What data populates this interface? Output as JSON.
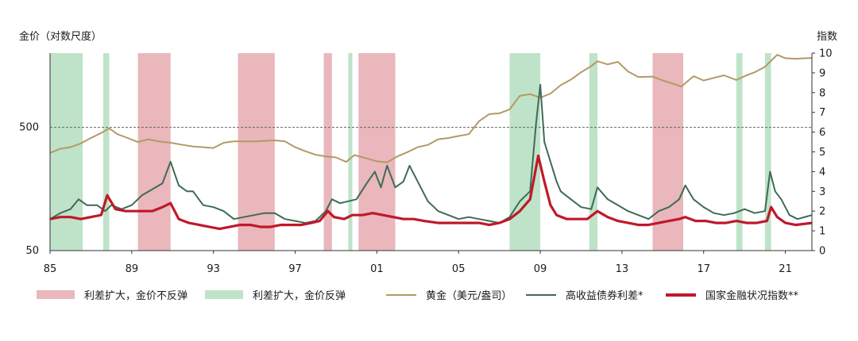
{
  "axes": {
    "left_title": "金价（对数尺度）",
    "right_title": "指数",
    "x_ticks": [
      "85",
      "89",
      "93",
      "97",
      "01",
      "05",
      "09",
      "13",
      "17",
      "21"
    ],
    "left_ticks": [
      "50",
      "500"
    ],
    "right_ticks": [
      "0",
      "1",
      "2",
      "3",
      "4",
      "5",
      "6",
      "7",
      "8",
      "9",
      "10"
    ]
  },
  "legend": {
    "red_band": "利差扩大，金价不反弹",
    "green_band": "利差扩大，金价反弹",
    "gold": "黄金（美元/盎司）",
    "hy": "高收益债券利差*",
    "fci": "国家金融状况指数**"
  },
  "colors": {
    "red_band": "#e9b7bc",
    "green_band": "#bfe3c9",
    "gold": "#b39a66",
    "hy": "#3e6b55",
    "fci": "#c0182a"
  },
  "chart_data": {
    "type": "line",
    "x_range": [
      1985.0,
      2022.3
    ],
    "left_axis": {
      "scale": "log",
      "range": [
        50,
        2000
      ],
      "ticks": [
        50,
        500
      ]
    },
    "right_axis": {
      "range": [
        0,
        10
      ],
      "ticks": [
        0,
        1,
        2,
        3,
        4,
        5,
        6,
        7,
        8,
        9,
        10
      ]
    },
    "reference_line": {
      "axis": "left",
      "value": 500,
      "style": "dashed"
    },
    "bands": [
      {
        "kind": "green",
        "start": 1985.0,
        "end": 1986.6
      },
      {
        "kind": "green",
        "start": 1987.6,
        "end": 1987.9
      },
      {
        "kind": "red",
        "start": 1989.3,
        "end": 1990.9
      },
      {
        "kind": "red",
        "start": 1994.2,
        "end": 1996.0
      },
      {
        "kind": "red",
        "start": 1998.4,
        "end": 1998.8
      },
      {
        "kind": "green",
        "start": 1999.6,
        "end": 1999.8
      },
      {
        "kind": "red",
        "start": 2000.1,
        "end": 2001.9
      },
      {
        "kind": "green",
        "start": 2007.5,
        "end": 2009.0
      },
      {
        "kind": "green",
        "start": 2011.4,
        "end": 2011.8
      },
      {
        "kind": "red",
        "start": 2014.5,
        "end": 2016.0
      },
      {
        "kind": "green",
        "start": 2018.6,
        "end": 2018.9
      },
      {
        "kind": "green",
        "start": 2020.0,
        "end": 2020.3
      }
    ],
    "series": [
      {
        "name": "黄金（美元/盎司）",
        "axis": "left",
        "points": [
          [
            1985.0,
            310
          ],
          [
            1985.5,
            335
          ],
          [
            1986.0,
            345
          ],
          [
            1986.5,
            370
          ],
          [
            1987.0,
            410
          ],
          [
            1987.5,
            450
          ],
          [
            1987.9,
            490
          ],
          [
            1988.3,
            440
          ],
          [
            1988.8,
            410
          ],
          [
            1989.3,
            380
          ],
          [
            1989.8,
            400
          ],
          [
            1990.3,
            385
          ],
          [
            1990.9,
            375
          ],
          [
            1991.5,
            360
          ],
          [
            1992.0,
            350
          ],
          [
            1992.5,
            345
          ],
          [
            1993.0,
            340
          ],
          [
            1993.5,
            375
          ],
          [
            1994.0,
            385
          ],
          [
            1995.0,
            385
          ],
          [
            1996.0,
            392
          ],
          [
            1996.5,
            385
          ],
          [
            1997.0,
            345
          ],
          [
            1997.5,
            320
          ],
          [
            1998.0,
            300
          ],
          [
            1998.5,
            290
          ],
          [
            1999.0,
            285
          ],
          [
            1999.5,
            262
          ],
          [
            1999.9,
            298
          ],
          [
            2000.5,
            280
          ],
          [
            2001.0,
            265
          ],
          [
            2001.5,
            260
          ],
          [
            2002.0,
            290
          ],
          [
            2002.5,
            315
          ],
          [
            2003.0,
            345
          ],
          [
            2003.5,
            360
          ],
          [
            2004.0,
            400
          ],
          [
            2004.5,
            410
          ],
          [
            2005.0,
            425
          ],
          [
            2005.5,
            440
          ],
          [
            2006.0,
            560
          ],
          [
            2006.5,
            640
          ],
          [
            2007.0,
            650
          ],
          [
            2007.5,
            700
          ],
          [
            2008.0,
            900
          ],
          [
            2008.5,
            930
          ],
          [
            2009.0,
            870
          ],
          [
            2009.5,
            940
          ],
          [
            2010.0,
            1100
          ],
          [
            2010.5,
            1220
          ],
          [
            2011.0,
            1400
          ],
          [
            2011.5,
            1570
          ],
          [
            2011.8,
            1720
          ],
          [
            2012.3,
            1620
          ],
          [
            2012.8,
            1700
          ],
          [
            2013.3,
            1420
          ],
          [
            2013.8,
            1280
          ],
          [
            2014.5,
            1290
          ],
          [
            2015.0,
            1200
          ],
          [
            2015.5,
            1130
          ],
          [
            2015.9,
            1070
          ],
          [
            2016.5,
            1300
          ],
          [
            2017.0,
            1200
          ],
          [
            2017.5,
            1260
          ],
          [
            2018.0,
            1320
          ],
          [
            2018.6,
            1210
          ],
          [
            2019.0,
            1300
          ],
          [
            2019.5,
            1400
          ],
          [
            2020.0,
            1550
          ],
          [
            2020.6,
            1940
          ],
          [
            2021.0,
            1820
          ],
          [
            2021.5,
            1800
          ],
          [
            2022.3,
            1830
          ]
        ]
      },
      {
        "name": "高收益债券利差*",
        "axis": "right",
        "points": [
          [
            1985.0,
            1.6
          ],
          [
            1985.5,
            1.9
          ],
          [
            1986.0,
            2.1
          ],
          [
            1986.4,
            2.6
          ],
          [
            1986.8,
            2.3
          ],
          [
            1987.3,
            2.3
          ],
          [
            1987.7,
            2.0
          ],
          [
            1988.0,
            2.3
          ],
          [
            1988.5,
            2.1
          ],
          [
            1989.0,
            2.3
          ],
          [
            1989.5,
            2.8
          ],
          [
            1990.0,
            3.1
          ],
          [
            1990.5,
            3.4
          ],
          [
            1990.9,
            4.5
          ],
          [
            1991.3,
            3.3
          ],
          [
            1991.7,
            3.0
          ],
          [
            1992.0,
            3.0
          ],
          [
            1992.5,
            2.3
          ],
          [
            1993.0,
            2.2
          ],
          [
            1993.5,
            2.0
          ],
          [
            1994.0,
            1.6
          ],
          [
            1994.5,
            1.7
          ],
          [
            1995.0,
            1.8
          ],
          [
            1995.5,
            1.9
          ],
          [
            1996.0,
            1.9
          ],
          [
            1996.5,
            1.6
          ],
          [
            1997.0,
            1.5
          ],
          [
            1997.5,
            1.4
          ],
          [
            1998.0,
            1.5
          ],
          [
            1998.5,
            2.0
          ],
          [
            1998.8,
            2.6
          ],
          [
            1999.2,
            2.4
          ],
          [
            1999.6,
            2.5
          ],
          [
            2000.0,
            2.6
          ],
          [
            2000.5,
            3.4
          ],
          [
            2000.9,
            4.0
          ],
          [
            2001.2,
            3.2
          ],
          [
            2001.5,
            4.3
          ],
          [
            2001.9,
            3.2
          ],
          [
            2002.3,
            3.5
          ],
          [
            2002.6,
            4.3
          ],
          [
            2003.0,
            3.5
          ],
          [
            2003.5,
            2.5
          ],
          [
            2004.0,
            2.0
          ],
          [
            2004.5,
            1.8
          ],
          [
            2005.0,
            1.6
          ],
          [
            2005.5,
            1.7
          ],
          [
            2006.0,
            1.6
          ],
          [
            2006.5,
            1.5
          ],
          [
            2007.0,
            1.4
          ],
          [
            2007.5,
            1.7
          ],
          [
            2008.0,
            2.5
          ],
          [
            2008.5,
            3.0
          ],
          [
            2008.8,
            6.5
          ],
          [
            2009.0,
            8.4
          ],
          [
            2009.2,
            5.5
          ],
          [
            2009.5,
            4.5
          ],
          [
            2009.8,
            3.5
          ],
          [
            2010.0,
            3.0
          ],
          [
            2010.5,
            2.6
          ],
          [
            2011.0,
            2.2
          ],
          [
            2011.5,
            2.1
          ],
          [
            2011.8,
            3.2
          ],
          [
            2012.3,
            2.6
          ],
          [
            2012.8,
            2.3
          ],
          [
            2013.3,
            2.0
          ],
          [
            2013.8,
            1.8
          ],
          [
            2014.3,
            1.6
          ],
          [
            2014.8,
            2.0
          ],
          [
            2015.3,
            2.2
          ],
          [
            2015.8,
            2.6
          ],
          [
            2016.1,
            3.3
          ],
          [
            2016.5,
            2.6
          ],
          [
            2017.0,
            2.2
          ],
          [
            2017.5,
            1.9
          ],
          [
            2018.0,
            1.8
          ],
          [
            2018.5,
            1.9
          ],
          [
            2019.0,
            2.1
          ],
          [
            2019.5,
            1.9
          ],
          [
            2020.0,
            2.0
          ],
          [
            2020.25,
            4.0
          ],
          [
            2020.5,
            3.0
          ],
          [
            2020.8,
            2.6
          ],
          [
            2021.2,
            1.8
          ],
          [
            2021.6,
            1.6
          ],
          [
            2022.3,
            1.8
          ]
        ]
      },
      {
        "name": "国家金融状况指数**",
        "axis": "right",
        "points": [
          [
            1985.0,
            1.6
          ],
          [
            1985.5,
            1.7
          ],
          [
            1986.0,
            1.7
          ],
          [
            1986.5,
            1.6
          ],
          [
            1987.0,
            1.7
          ],
          [
            1987.5,
            1.8
          ],
          [
            1987.8,
            2.8
          ],
          [
            1988.2,
            2.1
          ],
          [
            1988.7,
            2.0
          ],
          [
            1989.0,
            2.0
          ],
          [
            1989.5,
            2.0
          ],
          [
            1990.0,
            2.0
          ],
          [
            1990.5,
            2.2
          ],
          [
            1990.9,
            2.4
          ],
          [
            1991.3,
            1.6
          ],
          [
            1991.8,
            1.4
          ],
          [
            1992.3,
            1.3
          ],
          [
            1992.8,
            1.2
          ],
          [
            1993.3,
            1.1
          ],
          [
            1993.8,
            1.2
          ],
          [
            1994.3,
            1.3
          ],
          [
            1994.8,
            1.3
          ],
          [
            1995.3,
            1.2
          ],
          [
            1995.8,
            1.2
          ],
          [
            1996.3,
            1.3
          ],
          [
            1996.8,
            1.3
          ],
          [
            1997.3,
            1.3
          ],
          [
            1997.8,
            1.4
          ],
          [
            1998.2,
            1.5
          ],
          [
            1998.6,
            2.0
          ],
          [
            1998.9,
            1.7
          ],
          [
            1999.4,
            1.6
          ],
          [
            1999.8,
            1.8
          ],
          [
            2000.3,
            1.8
          ],
          [
            2000.8,
            1.9
          ],
          [
            2001.3,
            1.8
          ],
          [
            2001.8,
            1.7
          ],
          [
            2002.3,
            1.6
          ],
          [
            2002.8,
            1.6
          ],
          [
            2003.3,
            1.5
          ],
          [
            2004.0,
            1.4
          ],
          [
            2004.5,
            1.4
          ],
          [
            2005.0,
            1.4
          ],
          [
            2005.5,
            1.4
          ],
          [
            2006.0,
            1.4
          ],
          [
            2006.5,
            1.3
          ],
          [
            2007.0,
            1.4
          ],
          [
            2007.5,
            1.6
          ],
          [
            2008.0,
            2.0
          ],
          [
            2008.5,
            2.6
          ],
          [
            2008.9,
            4.8
          ],
          [
            2009.2,
            3.5
          ],
          [
            2009.5,
            2.3
          ],
          [
            2009.8,
            1.8
          ],
          [
            2010.3,
            1.6
          ],
          [
            2010.8,
            1.6
          ],
          [
            2011.3,
            1.6
          ],
          [
            2011.8,
            2.0
          ],
          [
            2012.3,
            1.7
          ],
          [
            2012.8,
            1.5
          ],
          [
            2013.3,
            1.4
          ],
          [
            2013.8,
            1.3
          ],
          [
            2014.3,
            1.3
          ],
          [
            2014.8,
            1.4
          ],
          [
            2015.3,
            1.5
          ],
          [
            2015.8,
            1.6
          ],
          [
            2016.1,
            1.7
          ],
          [
            2016.6,
            1.5
          ],
          [
            2017.1,
            1.5
          ],
          [
            2017.6,
            1.4
          ],
          [
            2018.1,
            1.4
          ],
          [
            2018.6,
            1.5
          ],
          [
            2019.1,
            1.4
          ],
          [
            2019.6,
            1.4
          ],
          [
            2020.1,
            1.5
          ],
          [
            2020.3,
            2.2
          ],
          [
            2020.6,
            1.7
          ],
          [
            2021.0,
            1.4
          ],
          [
            2021.5,
            1.3
          ],
          [
            2022.3,
            1.4
          ]
        ]
      }
    ]
  }
}
